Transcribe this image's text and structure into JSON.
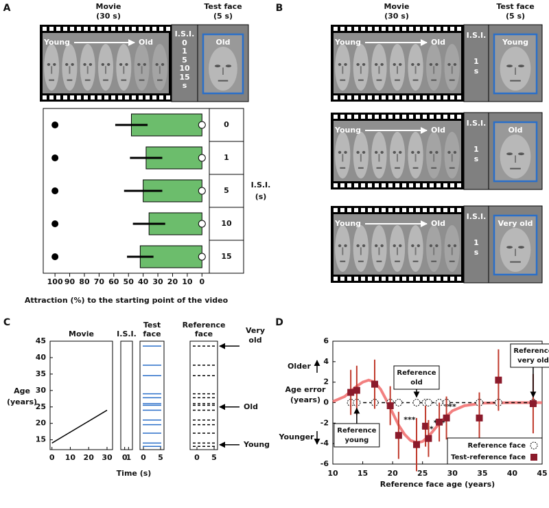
{
  "panel_labels": [
    "A",
    "B",
    "C",
    "D"
  ],
  "panel_a": {
    "movie_title": [
      "Movie",
      "(30 s)"
    ],
    "test_title": [
      "Test face",
      "(5 s)"
    ],
    "strip": {
      "start": "Young",
      "end": "Old",
      "isi": [
        "I.S.I.",
        "0",
        "1",
        "5",
        "10",
        "15",
        "s"
      ],
      "test": "Old"
    }
  },
  "panel_b": {
    "movie_title": [
      "Movie",
      "(30 s)"
    ],
    "test_title": [
      "Test face",
      "(5 s)"
    ],
    "strips": [
      {
        "start": "Young",
        "end": "Old",
        "isi": [
          "I.S.I.",
          "1",
          "s"
        ],
        "test": "Young"
      },
      {
        "start": "Young",
        "end": "Old",
        "isi": [
          "I.S.I.",
          "1",
          "s"
        ],
        "test": "Old"
      },
      {
        "start": "Young",
        "end": "Old",
        "isi": [
          "I.S.I.",
          "1",
          "s"
        ],
        "test": "Very old"
      }
    ]
  },
  "chart_data": [
    {
      "type": "hbar",
      "categories": [
        "0",
        "1",
        "5",
        "10",
        "15"
      ],
      "values": [
        48,
        38,
        40,
        36,
        42
      ],
      "errors": [
        11,
        11,
        13,
        11,
        9
      ],
      "color": "#6cbd6c",
      "xlim": [
        108,
        -5
      ],
      "xticks": [
        100,
        90,
        80,
        70,
        60,
        50,
        40,
        30,
        20,
        10,
        0
      ],
      "xlabel": "Attraction (%) to the starting point of the video",
      "ylabel": [
        "I.S.I.",
        "(s)"
      ],
      "start_point": 100,
      "end_point": 0
    },
    {
      "type": "timeline",
      "ylim": [
        12,
        45
      ],
      "yticks": [
        15,
        20,
        25,
        30,
        35,
        40,
        45
      ],
      "ylabel": [
        "Age",
        "(years)"
      ],
      "xlabel": "Time (s)",
      "panels": [
        {
          "title": [
            "Movie"
          ],
          "xlim": [
            -1,
            33
          ],
          "xticks": [
            0,
            10,
            20,
            30
          ],
          "x": [
            0,
            30
          ],
          "values": [
            14,
            24
          ]
        },
        {
          "title": [
            "I.S.I."
          ],
          "xlim": [
            -1,
            2
          ],
          "xticks": [
            0,
            1
          ]
        },
        {
          "title": [
            "Test",
            "face"
          ],
          "xlim": [
            -1,
            6
          ],
          "xticks": [
            0,
            5
          ],
          "color": "#2a6fc9",
          "levels": [
            13,
            14,
            17,
            19.6,
            21,
            24,
            25.5,
            26,
            27.8,
            29,
            34.5,
            37.7,
            43.5
          ]
        },
        {
          "title": [
            "Reference",
            "face"
          ],
          "xlim": [
            -2,
            6
          ],
          "xticks": [
            0,
            5
          ],
          "levels": [
            13,
            14,
            17,
            19.6,
            21,
            24,
            25.5,
            26,
            27.8,
            29,
            34.5,
            37.7,
            43.5
          ],
          "annotations": [
            {
              "text": [
                "Very",
                "old"
              ],
              "value": 43.5
            },
            {
              "text": [
                "Old"
              ],
              "value": 25
            },
            {
              "text": [
                "Young"
              ],
              "value": 13.5
            }
          ]
        }
      ]
    },
    {
      "type": "scatter",
      "xlim": [
        10,
        45
      ],
      "xticks": [
        10,
        15,
        20,
        25,
        30,
        35,
        40,
        45
      ],
      "ylim": [
        -6,
        6
      ],
      "yticks": [
        -6,
        -4,
        -2,
        0,
        2,
        4,
        6
      ],
      "xlabel": "Reference face age (years)",
      "ylabel": [
        "Age error",
        "(years)"
      ],
      "ylabel_high": "Older",
      "ylabel_low": "Younger",
      "legend": "lower right",
      "fit": {
        "color": "#f06a6a",
        "x": [
          10,
          12,
          14,
          15,
          16,
          17,
          18,
          19,
          20,
          21,
          22,
          23,
          24,
          25,
          26,
          27,
          28,
          30,
          32,
          35,
          40,
          45
        ],
        "values": [
          0.1,
          0.6,
          1.6,
          2.0,
          2.2,
          2.0,
          1.3,
          0.2,
          -1.0,
          -2.2,
          -3.1,
          -3.7,
          -3.9,
          -3.8,
          -3.3,
          -2.6,
          -1.9,
          -0.8,
          -0.3,
          -0.05,
          0,
          0
        ]
      },
      "series": [
        {
          "name": "Reference face",
          "color": "#000000",
          "x": [
            13,
            14,
            17,
            19.6,
            21,
            24,
            25.5,
            26,
            27.8,
            29,
            34.5,
            37.7,
            43.5
          ],
          "values": [
            0,
            0,
            0,
            0,
            0,
            0,
            0,
            0,
            0,
            0,
            0,
            0,
            0
          ]
        },
        {
          "name": "Test-reference face",
          "color": "#8b1a2b",
          "x": [
            13,
            14,
            17,
            19.6,
            21,
            24,
            25.5,
            26,
            27.8,
            29,
            34.5,
            37.7,
            43.5
          ],
          "values": [
            1.0,
            1.2,
            1.8,
            -0.3,
            -3.2,
            -4.1,
            -2.3,
            -3.5,
            -1.9,
            -1.5,
            -1.5,
            2.2,
            -0.1
          ],
          "errors": [
            2.2,
            2.4,
            2.4,
            1.9,
            2.3,
            2.6,
            2.0,
            1.8,
            1.9,
            2.1,
            2.5,
            3.0,
            2.9
          ],
          "significance": [
            null,
            null,
            null,
            null,
            "***",
            "***",
            null,
            "***",
            "***",
            null,
            null,
            null,
            null
          ]
        }
      ],
      "annotations": [
        {
          "text": [
            "Reference",
            "young"
          ],
          "x": 14
        },
        {
          "text": [
            "Reference",
            "old"
          ],
          "x": 24
        },
        {
          "text": [
            "Reference",
            "very old"
          ],
          "x": 43.5
        }
      ]
    }
  ]
}
